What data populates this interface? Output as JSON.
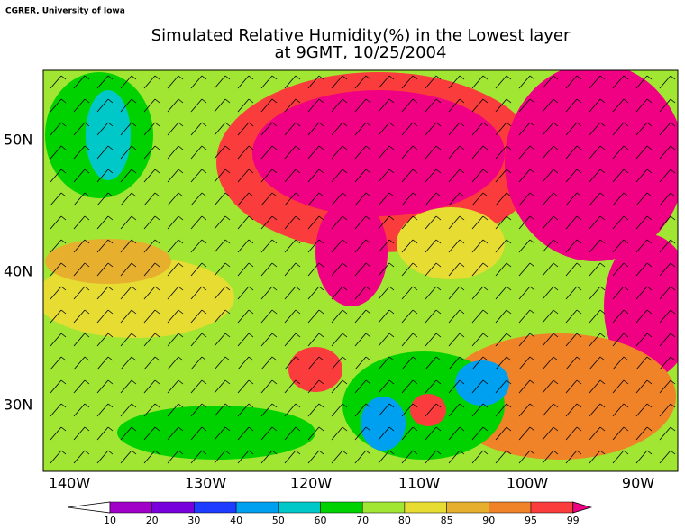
{
  "credit": "CGRER, University of Iowa",
  "title": [
    "Simulated Relative Humidity(%) in the Lowest layer",
    "at 9GMT, 10/25/2004"
  ],
  "lon_labels": [
    "140W",
    "130W",
    "120W",
    "110W",
    "100W",
    "90W"
  ],
  "lat_labels": [
    "50N",
    "40N",
    "30N"
  ],
  "colorbar": {
    "levels": [
      10,
      20,
      30,
      40,
      50,
      60,
      70,
      80,
      85,
      90,
      95,
      99
    ],
    "colors": [
      "#ffffff",
      "#a000c8",
      "#7800dc",
      "#1e3cff",
      "#00a0f0",
      "#00c8c8",
      "#00d200",
      "#a0e632",
      "#e6dc32",
      "#e6af2d",
      "#f08228",
      "#fa3c3c",
      "#f00082"
    ]
  }
}
